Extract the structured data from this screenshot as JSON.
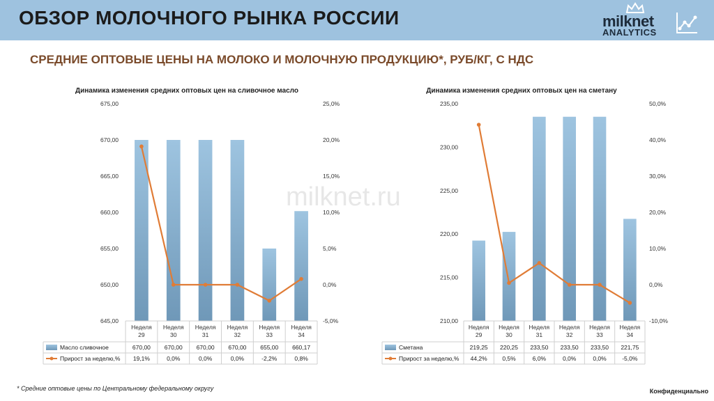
{
  "header": {
    "title": "ОБЗОР МОЛОЧНОГО РЫНКА РОССИИ"
  },
  "logo": {
    "brand": "milknet",
    "sub": "ANALYTICS"
  },
  "subtitle": "СРЕДНИЕ ОПТОВЫЕ ЦЕНЫ НА МОЛОКО И МОЛОЧНУЮ ПРОДУКЦИЮ*, РУБ/КГ, С НДС",
  "watermark": "milknet.ru",
  "footnote": "* Средние оптовые цены по Центральному федеральному округу",
  "confidential": "Конфиденциально",
  "colors": {
    "bar_top": "#9ec4e0",
    "bar_bottom": "#6f98b8",
    "line": "#e07c36",
    "header": "#9ec2df",
    "subtitle": "#7a4a2a"
  },
  "chart_data": [
    {
      "type": "bar",
      "title": "Динамика изменения средних оптовых цен на сливочное масло",
      "categories": [
        "Неделя 29",
        "Неделя 30",
        "Неделя 31",
        "Неделя 32",
        "Неделя 33",
        "Неделя 34"
      ],
      "category_lines": [
        [
          "Неделя",
          "29"
        ],
        [
          "Неделя",
          "30"
        ],
        [
          "Неделя",
          "31"
        ],
        [
          "Неделя",
          "32"
        ],
        [
          "Неделя",
          "33"
        ],
        [
          "Неделя",
          "34"
        ]
      ],
      "series": [
        {
          "name": "Масло сливочное",
          "kind": "bar",
          "axis": "left",
          "values": [
            670.0,
            670.0,
            670.0,
            670.0,
            655.0,
            660.17
          ],
          "labels": [
            "670,00",
            "670,00",
            "670,00",
            "670,00",
            "655,00",
            "660,17"
          ]
        },
        {
          "name": "Прирост за неделю,%",
          "kind": "line",
          "axis": "right",
          "values": [
            19.1,
            0.0,
            0.0,
            0.0,
            -2.2,
            0.8
          ],
          "labels": [
            "19,1%",
            "0,0%",
            "0,0%",
            "0,0%",
            "-2,2%",
            "0,8%"
          ]
        }
      ],
      "ylim": [
        645,
        675
      ],
      "y_ticks": [
        "645,00",
        "650,00",
        "655,00",
        "660,00",
        "665,00",
        "670,00",
        "675,00"
      ],
      "y2lim": [
        -5,
        25
      ],
      "y2_ticks": [
        "-5,0%",
        "0,0%",
        "5,0%",
        "10,0%",
        "15,0%",
        "20,0%",
        "25,0%"
      ],
      "legend": "data-table"
    },
    {
      "type": "bar",
      "title": "Динамика изменения средних оптовых цен на сметану",
      "categories": [
        "Неделя 29",
        "Неделя 30",
        "Неделя 31",
        "Неделя 32",
        "Неделя 33",
        "Неделя 34"
      ],
      "category_lines": [
        [
          "Неделя",
          "29"
        ],
        [
          "Неделя",
          "30"
        ],
        [
          "Неделя",
          "31"
        ],
        [
          "Неделя",
          "32"
        ],
        [
          "Неделя",
          "33"
        ],
        [
          "Неделя",
          "34"
        ]
      ],
      "series": [
        {
          "name": "Сметана",
          "kind": "bar",
          "axis": "left",
          "values": [
            219.25,
            220.25,
            233.5,
            233.5,
            233.5,
            221.75
          ],
          "labels": [
            "219,25",
            "220,25",
            "233,50",
            "233,50",
            "233,50",
            "221,75"
          ]
        },
        {
          "name": "Прирост за неделю,%",
          "kind": "line",
          "axis": "right",
          "values": [
            44.2,
            0.5,
            6.0,
            0.0,
            0.0,
            -5.0
          ],
          "labels": [
            "44,2%",
            "0,5%",
            "6,0%",
            "0,0%",
            "0,0%",
            "-5,0%"
          ]
        }
      ],
      "ylim": [
        210,
        235
      ],
      "y_ticks": [
        "210,00",
        "215,00",
        "220,00",
        "225,00",
        "230,00",
        "235,00"
      ],
      "y2lim": [
        -10,
        50
      ],
      "y2_ticks": [
        "-10,0%",
        "0,0%",
        "10,0%",
        "20,0%",
        "30,0%",
        "40,0%",
        "50,0%"
      ],
      "legend": "data-table"
    }
  ]
}
